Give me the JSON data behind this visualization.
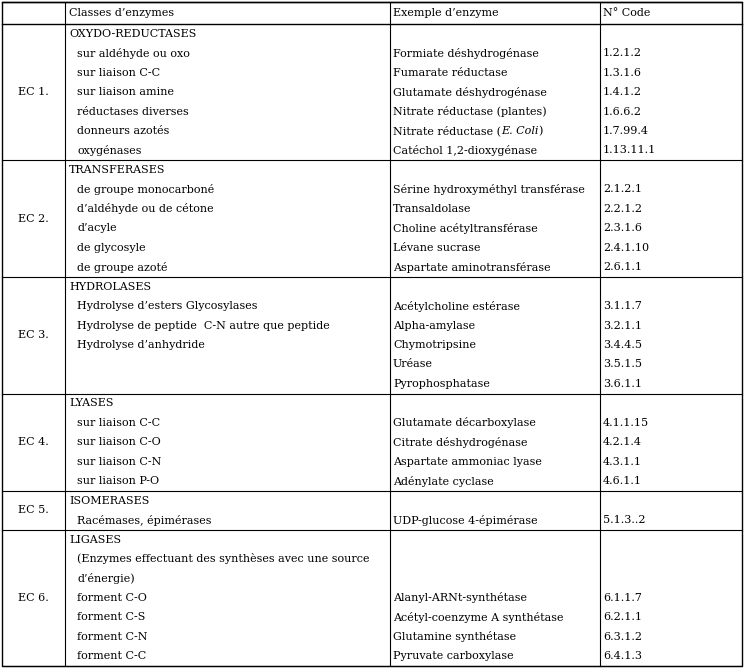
{
  "col_headers": [
    "Classes d’enzymes",
    "Exemple d’enzyme",
    "N° Code"
  ],
  "sections": [
    {
      "ec": "EC 1.",
      "main": "OXYDO-REDUCTASES",
      "sub": [
        "sur aldéhyde ou oxo",
        "sur liaison C-C",
        "sur liaison amine",
        "réductases diverses",
        "donneurs azotés",
        "oxygénases"
      ],
      "examples": [
        "",
        "Formiate déshydrogénase",
        "Fumarate réductase",
        "Glutamate déshydrogénase",
        "Nitrate réductase (plantes)",
        [
          "Nitrate réductase (",
          "E. Coli",
          ")"
        ],
        "Catéchol 1,2-dioxygénase"
      ],
      "codes": [
        "",
        "1.2.1.2",
        "1.3.1.6",
        "1.4.1.2",
        "1.6.6.2",
        "1.7.99.4",
        "1.13.11.1"
      ]
    },
    {
      "ec": "EC 2.",
      "main": "TRANSFERASES",
      "sub": [
        "de groupe monocarboné",
        "d’aldéhyde ou de cétone",
        "d’acyle",
        "de glycosyle",
        "de groupe azoté"
      ],
      "examples": [
        "",
        "Sérine hydroxyméthyl transférase",
        "Transaldolase",
        "Choline acétyltransférase",
        "Lévane sucrase",
        "Aspartate aminotransférase"
      ],
      "codes": [
        "",
        "2.1.2.1",
        "2.2.1.2",
        "2.3.1.6",
        "2.4.1.10",
        "2.6.1.1"
      ]
    },
    {
      "ec": "EC 3.",
      "main": "HYDROLASES",
      "sub": [
        "Hydrolyse d’esters Glycosylases",
        "Hydrolyse de peptide  C-N autre que peptide",
        "Hydrolyse d’anhydride"
      ],
      "examples": [
        "",
        "Acétylcholine estérase",
        "Alpha-amylase",
        "Chymotripsine",
        "Uréase",
        "Pyrophosphatase"
      ],
      "codes": [
        "",
        "3.1.1.7",
        "3.2.1.1",
        "3.4.4.5",
        "3.5.1.5",
        "3.6.1.1"
      ]
    },
    {
      "ec": "EC 4.",
      "main": "LYASES",
      "sub": [
        "sur liaison C-C",
        "sur liaison C-O",
        "sur liaison C-N",
        "sur liaison P-O"
      ],
      "examples": [
        "",
        "Glutamate décarboxylase",
        "Citrate déshydrogénase",
        "Aspartate ammoniac lyase",
        "Adénylate cyclase"
      ],
      "codes": [
        "",
        "4.1.1.15",
        "4.2.1.4",
        "4.3.1.1",
        "4.6.1.1"
      ]
    },
    {
      "ec": "EC 5.",
      "main": "ISOMERASES",
      "sub": [
        "Racémases, épimérases"
      ],
      "examples": [
        "",
        "UDP-glucose 4-épimérase"
      ],
      "codes": [
        "",
        "5.1.3..2"
      ]
    },
    {
      "ec": "EC 6.",
      "main": "LIGASES",
      "sub": [
        "(Enzymes effectuant des synthèses avec une source d’énergie)",
        "forment C-O",
        "forment C-S",
        "forment C-N",
        "forment C-C"
      ],
      "sub_wrapped": [
        [
          "(Enzymes effectuant des synthèses avec une source",
          "d’énergie)"
        ],
        [
          "forment C-O"
        ],
        [
          "forment C-S"
        ],
        [
          "forment C-N"
        ],
        [
          "forment C-C"
        ]
      ],
      "examples": [
        "",
        "",
        "",
        "Alanyl-ARNt-synthétase",
        "Acétyl-coenzyme A synthétase",
        "Glutamine synthétase",
        "Pyruvate carboxylase"
      ],
      "codes": [
        "",
        "",
        "",
        "6.1.1.7",
        "6.2.1.1",
        "6.3.1.2",
        "6.4.1.3"
      ]
    }
  ],
  "font_size": 8.0,
  "bg_color": "white",
  "text_color": "black"
}
